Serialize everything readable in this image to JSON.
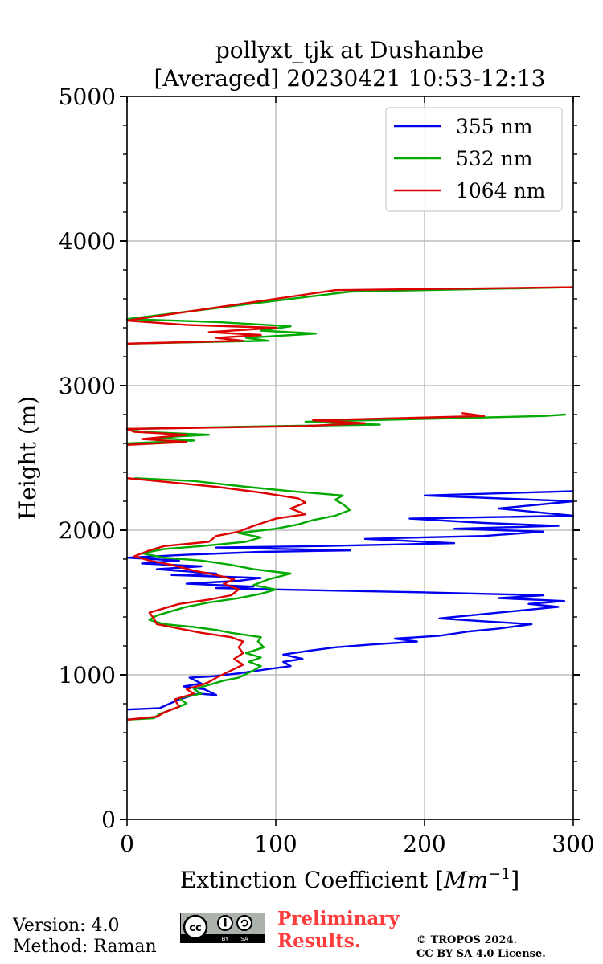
{
  "chart_data": {
    "type": "line",
    "title": "pollyxt_tjk at Dushanbe",
    "subtitle": "[Averaged] 20230421 10:53-12:13",
    "xlabel": "Extinction Coefficient",
    "xlabel_unit": "Mm",
    "xlabel_unit_exp": "−1",
    "ylabel": "Height (m)",
    "xlim": [
      0,
      300
    ],
    "ylim": [
      0,
      5000
    ],
    "x_ticks": [
      "0",
      "100",
      "200",
      "300"
    ],
    "y_ticks": [
      "0",
      "1000",
      "2000",
      "3000",
      "4000",
      "5000"
    ],
    "grid": true,
    "legend_position": "top-right",
    "series": [
      {
        "name": "355 nm",
        "color": "#0000ee",
        "points": [
          [
            0,
            760
          ],
          [
            22,
            770
          ],
          [
            35,
            830
          ],
          [
            48,
            870
          ],
          [
            60,
            860
          ],
          [
            52,
            900
          ],
          [
            38,
            920
          ],
          [
            50,
            940
          ],
          [
            42,
            980
          ],
          [
            58,
            990
          ],
          [
            75,
            1010
          ],
          [
            95,
            1040
          ],
          [
            110,
            1060
          ],
          [
            105,
            1090
          ],
          [
            118,
            1110
          ],
          [
            105,
            1140
          ],
          [
            125,
            1170
          ],
          [
            140,
            1190
          ],
          [
            165,
            1210
          ],
          [
            195,
            1230
          ],
          [
            180,
            1250
          ],
          [
            210,
            1270
          ],
          [
            230,
            1300
          ],
          [
            250,
            1320
          ],
          [
            272,
            1350
          ],
          [
            240,
            1370
          ],
          [
            210,
            1390
          ],
          [
            230,
            1410
          ],
          [
            260,
            1440
          ],
          [
            290,
            1470
          ],
          [
            270,
            1490
          ],
          [
            294,
            1510
          ],
          [
            250,
            1530
          ],
          [
            280,
            1550
          ],
          [
            200,
            1570
          ],
          [
            100,
            1590
          ],
          [
            60,
            1600
          ],
          [
            85,
            1610
          ],
          [
            40,
            1630
          ],
          [
            75,
            1650
          ],
          [
            90,
            1670
          ],
          [
            30,
            1690
          ],
          [
            60,
            1700
          ],
          [
            20,
            1730
          ],
          [
            50,
            1750
          ],
          [
            10,
            1770
          ],
          [
            35,
            1790
          ],
          [
            0,
            1810
          ],
          [
            40,
            1830
          ],
          [
            90,
            1850
          ],
          [
            150,
            1860
          ],
          [
            60,
            1880
          ],
          [
            130,
            1890
          ],
          [
            220,
            1910
          ],
          [
            160,
            1940
          ],
          [
            240,
            1960
          ],
          [
            280,
            1990
          ],
          [
            220,
            2010
          ],
          [
            290,
            2030
          ],
          [
            240,
            2050
          ],
          [
            190,
            2080
          ],
          [
            300,
            2100
          ],
          [
            250,
            2150
          ],
          [
            300,
            2200
          ],
          [
            200,
            2240
          ],
          [
            300,
            2270
          ]
        ]
      },
      {
        "name": "532 nm",
        "color": "#00aa00",
        "points": [
          [
            0,
            690
          ],
          [
            18,
            700
          ],
          [
            22,
            730
          ],
          [
            30,
            760
          ],
          [
            40,
            800
          ],
          [
            35,
            840
          ],
          [
            50,
            870
          ],
          [
            45,
            900
          ],
          [
            55,
            930
          ],
          [
            65,
            960
          ],
          [
            75,
            980
          ],
          [
            85,
            1030
          ],
          [
            90,
            1060
          ],
          [
            82,
            1090
          ],
          [
            90,
            1120
          ],
          [
            80,
            1150
          ],
          [
            92,
            1190
          ],
          [
            88,
            1230
          ],
          [
            90,
            1260
          ],
          [
            70,
            1290
          ],
          [
            60,
            1310
          ],
          [
            45,
            1330
          ],
          [
            25,
            1350
          ],
          [
            15,
            1380
          ],
          [
            20,
            1410
          ],
          [
            30,
            1440
          ],
          [
            40,
            1470
          ],
          [
            55,
            1500
          ],
          [
            75,
            1530
          ],
          [
            90,
            1560
          ],
          [
            100,
            1590
          ],
          [
            85,
            1620
          ],
          [
            95,
            1660
          ],
          [
            110,
            1700
          ],
          [
            85,
            1730
          ],
          [
            70,
            1760
          ],
          [
            50,
            1790
          ],
          [
            25,
            1810
          ],
          [
            10,
            1840
          ],
          [
            25,
            1870
          ],
          [
            50,
            1890
          ],
          [
            80,
            1920
          ],
          [
            90,
            1950
          ],
          [
            75,
            1980
          ],
          [
            100,
            2010
          ],
          [
            115,
            2040
          ],
          [
            125,
            2070
          ],
          [
            140,
            2100
          ],
          [
            150,
            2140
          ],
          [
            145,
            2180
          ],
          [
            140,
            2210
          ],
          [
            145,
            2240
          ],
          [
            110,
            2270
          ],
          [
            80,
            2300
          ],
          [
            45,
            2340
          ],
          [
            5,
            2360
          ]
        ]
      },
      {
        "name": "1064 nm",
        "color": "#dd0000",
        "points": [
          [
            0,
            690
          ],
          [
            20,
            710
          ],
          [
            25,
            740
          ],
          [
            35,
            780
          ],
          [
            32,
            830
          ],
          [
            45,
            870
          ],
          [
            40,
            900
          ],
          [
            50,
            930
          ],
          [
            55,
            950
          ],
          [
            60,
            980
          ],
          [
            70,
            1030
          ],
          [
            78,
            1070
          ],
          [
            72,
            1110
          ],
          [
            78,
            1150
          ],
          [
            75,
            1190
          ],
          [
            78,
            1230
          ],
          [
            70,
            1260
          ],
          [
            50,
            1290
          ],
          [
            35,
            1320
          ],
          [
            20,
            1350
          ],
          [
            18,
            1390
          ],
          [
            15,
            1430
          ],
          [
            25,
            1460
          ],
          [
            35,
            1490
          ],
          [
            55,
            1520
          ],
          [
            70,
            1550
          ],
          [
            75,
            1590
          ],
          [
            65,
            1630
          ],
          [
            72,
            1660
          ],
          [
            60,
            1690
          ],
          [
            45,
            1720
          ],
          [
            30,
            1760
          ],
          [
            15,
            1790
          ],
          [
            5,
            1820
          ],
          [
            15,
            1860
          ],
          [
            25,
            1890
          ],
          [
            55,
            1920
          ],
          [
            60,
            1960
          ],
          [
            75,
            1990
          ],
          [
            85,
            2030
          ],
          [
            100,
            2080
          ],
          [
            120,
            2110
          ],
          [
            110,
            2150
          ],
          [
            120,
            2190
          ],
          [
            115,
            2220
          ],
          [
            90,
            2260
          ],
          [
            60,
            2300
          ],
          [
            30,
            2330
          ],
          [
            0,
            2360
          ]
        ]
      }
    ],
    "upper_layers": [
      {
        "name": "532 nm",
        "color": "#00aa00",
        "segments": [
          [
            [
              0,
              2600
            ],
            [
              45,
              2620
            ],
            [
              20,
              2640
            ],
            [
              55,
              2660
            ],
            [
              10,
              2680
            ],
            [
              0,
              2700
            ],
            [
              100,
              2720
            ],
            [
              170,
              2730
            ],
            [
              120,
              2750
            ],
            [
              280,
              2790
            ],
            [
              295,
              2800
            ]
          ],
          [
            [
              0,
              3290
            ],
            [
              95,
              3310
            ],
            [
              80,
              3330
            ],
            [
              127,
              3360
            ],
            [
              90,
              3380
            ],
            [
              110,
              3410
            ],
            [
              60,
              3440
            ],
            [
              0,
              3460
            ],
            [
              150,
              3650
            ],
            [
              300,
              3680
            ]
          ]
        ]
      },
      {
        "name": "1064 nm",
        "color": "#dd0000",
        "segments": [
          [
            [
              0,
              2590
            ],
            [
              40,
              2610
            ],
            [
              10,
              2630
            ],
            [
              40,
              2660
            ],
            [
              5,
              2680
            ],
            [
              0,
              2700
            ],
            [
              120,
              2720
            ],
            [
              160,
              2740
            ],
            [
              125,
              2760
            ],
            [
              240,
              2790
            ],
            [
              225,
              2810
            ]
          ],
          [
            [
              0,
              3290
            ],
            [
              78,
              3310
            ],
            [
              60,
              3330
            ],
            [
              90,
              3350
            ],
            [
              55,
              3370
            ],
            [
              100,
              3400
            ],
            [
              40,
              3420
            ],
            [
              0,
              3450
            ],
            [
              140,
              3660
            ],
            [
              300,
              3680
            ]
          ]
        ]
      }
    ]
  },
  "footer": {
    "version": "Version: 4.0",
    "method": "Method: Raman",
    "preliminary_line1": "Preliminary",
    "preliminary_line2": "Results.",
    "copyright_line1": "© TROPOS 2024.",
    "copyright_line2": "CC BY SA 4.0 License.",
    "license_badge": {
      "cc": "cc",
      "by": "BY",
      "sa": "SA"
    }
  }
}
